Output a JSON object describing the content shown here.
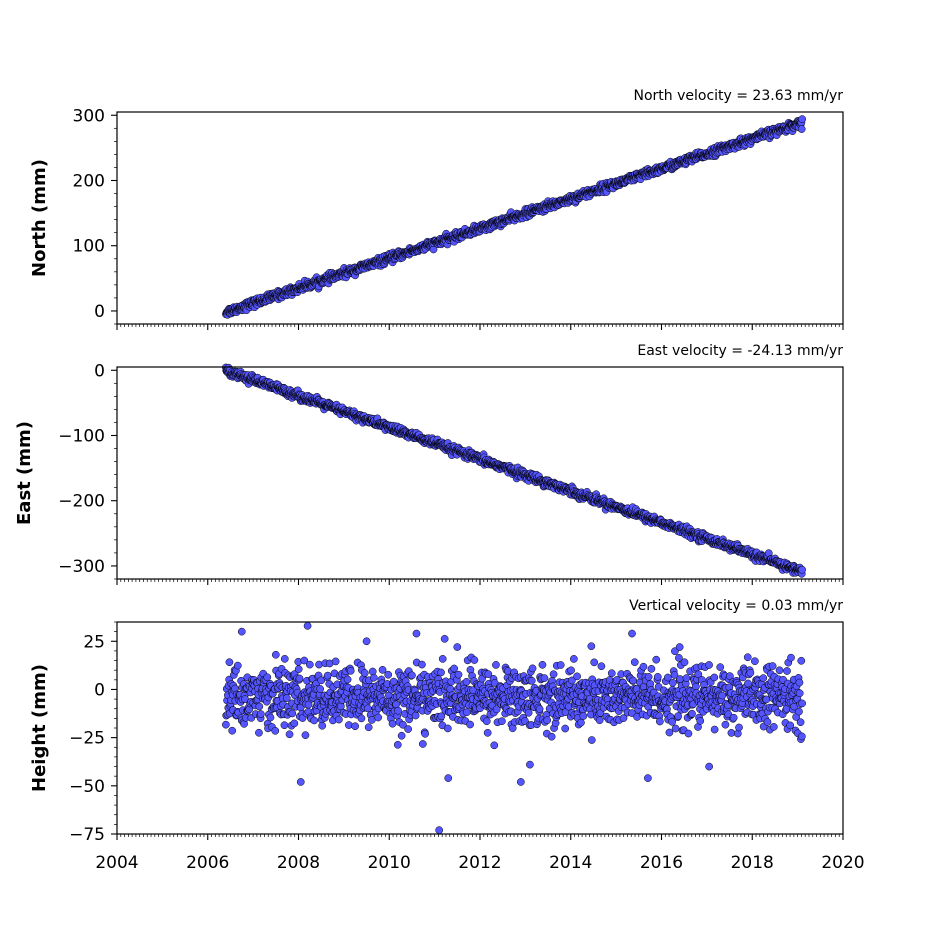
{
  "chart_data": [
    {
      "type": "scatter",
      "title": "North velocity = 23.63 mm/yr",
      "xlabel": "",
      "ylabel": "North (mm)",
      "xlim": [
        2004,
        2020
      ],
      "ylim": [
        -20,
        305
      ],
      "yticks": [
        0,
        100,
        200,
        300
      ],
      "ytick_labels": [
        "0",
        "100",
        "200",
        "300"
      ],
      "xtick_labels_shown": false,
      "trend": {
        "x_start": 2006.4,
        "x_end": 2019.1,
        "y_start": -2,
        "y_end": 289,
        "scatter": 3
      },
      "marker_color": "#5555ff",
      "edge_color": "#000000"
    },
    {
      "type": "scatter",
      "title": "East velocity = -24.13 mm/yr",
      "xlabel": "",
      "ylabel": "East (mm)",
      "xlim": [
        2004,
        2020
      ],
      "ylim": [
        -320,
        5
      ],
      "yticks": [
        0,
        -100,
        -200,
        -300
      ],
      "ytick_labels": [
        "0",
        "−100",
        "−200",
        "−300"
      ],
      "xtick_labels_shown": false,
      "trend": {
        "x_start": 2006.4,
        "x_end": 2019.1,
        "y_start": 0,
        "y_end": -309,
        "scatter": 3
      },
      "marker_color": "#5555ff",
      "edge_color": "#000000"
    },
    {
      "type": "scatter",
      "title": "Vertical velocity = 0.03 mm/yr",
      "xlabel": "",
      "ylabel": "Height (mm)",
      "xlim": [
        2004,
        2020
      ],
      "ylim": [
        -75,
        35
      ],
      "yticks": [
        25,
        0,
        -25,
        -50,
        -75
      ],
      "ytick_labels": [
        "25",
        "0",
        "−25",
        "−50",
        "−75"
      ],
      "xticks": [
        2004,
        2006,
        2008,
        2010,
        2012,
        2014,
        2016,
        2018,
        2020
      ],
      "xtick_labels": [
        "2004",
        "2006",
        "2008",
        "2010",
        "2012",
        "2014",
        "2016",
        "2018",
        "2020"
      ],
      "xtick_labels_shown": true,
      "trend": {
        "x_start": 2006.4,
        "x_end": 2019.1,
        "y_start": -4,
        "y_end": -4,
        "scatter": 8
      },
      "outliers": [
        {
          "x": 2006.75,
          "y": 30
        },
        {
          "x": 2008.2,
          "y": 33
        },
        {
          "x": 2009.5,
          "y": 25
        },
        {
          "x": 2010.6,
          "y": 29
        },
        {
          "x": 2015.35,
          "y": 29
        },
        {
          "x": 2011.3,
          "y": -46
        },
        {
          "x": 2008.05,
          "y": -48
        },
        {
          "x": 2011.1,
          "y": -73
        },
        {
          "x": 2012.9,
          "y": -48
        },
        {
          "x": 2015.7,
          "y": -46
        },
        {
          "x": 2017.05,
          "y": -40
        },
        {
          "x": 2013.1,
          "y": -39
        },
        {
          "x": 2007.5,
          "y": 18
        },
        {
          "x": 2011.5,
          "y": 22
        },
        {
          "x": 2016.4,
          "y": 22
        }
      ],
      "marker_color": "#5555ff",
      "edge_color": "#000000"
    }
  ]
}
